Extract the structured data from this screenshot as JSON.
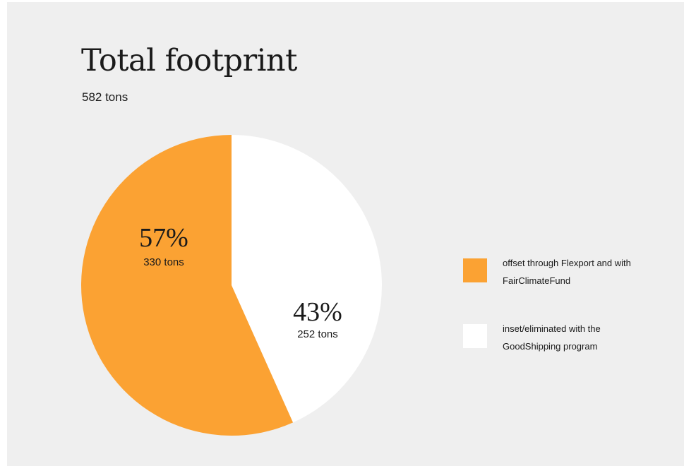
{
  "chart_data": {
    "type": "pie",
    "title": "Total footprint",
    "subtitle": "582 tons",
    "slices": [
      {
        "label": "offset through Flexport and with FairClimateFund",
        "percent": 57,
        "percent_label": "57%",
        "value": 330,
        "value_label": "330 tons",
        "color": "#fba233"
      },
      {
        "label": "inset/eliminated with the GoodShipping program",
        "percent": 43,
        "percent_label": "43%",
        "value": 252,
        "value_label": "252 tons",
        "color": "#ffffff"
      }
    ],
    "legend_position": "right"
  }
}
